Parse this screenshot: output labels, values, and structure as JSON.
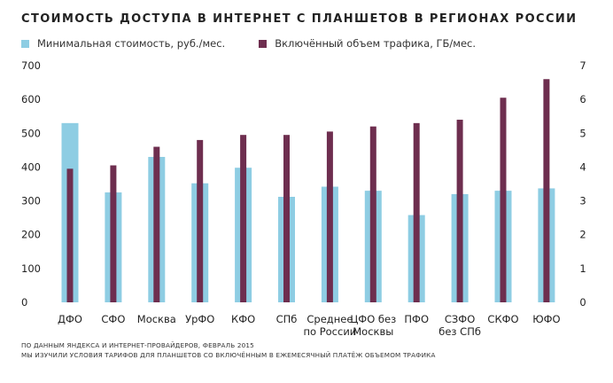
{
  "header": {
    "title": "СТОИМОСТЬ ДОСТУПА В ИНТЕРНЕТ С ПЛАНШЕТОВ В РЕГИОНАХ РОССИИ"
  },
  "legend": {
    "items": [
      {
        "label": "Минимальная стоимость, руб./мес.",
        "color": "#8ecde3"
      },
      {
        "label": "Включённый объем трафика, ГБ/мес.",
        "color": "#6e2e4f"
      }
    ]
  },
  "footer": {
    "source_line1": "ПО ДАННЫМ ЯНДЕКСА И ИНТЕРНЕТ-ПРОВАЙДЕРОВ, ФЕВРАЛЬ 2015",
    "source_line2": "МЫ ИЗУЧИЛИ УСЛОВИЯ ТАРИФОВ ДЛЯ ПЛАНШЕТОВ СО ВКЛЮЧЁННЫМ В ЕЖЕМЕСЯЧНЫЙ ПЛАТЁЖ ОБЪЕМОМ ТРАФИКА"
  },
  "chart_data": {
    "type": "bar",
    "title": "СТОИМОСТЬ ДОСТУПА В ИНТЕРНЕТ С ПЛАНШЕТОВ В РЕГИОНАХ РОССИИ",
    "categories": [
      [
        "ДФО"
      ],
      [
        "СФО"
      ],
      [
        "Москва"
      ],
      [
        "УрФО"
      ],
      [
        "КФО"
      ],
      [
        "СПб"
      ],
      [
        "Среднее",
        "по России"
      ],
      [
        "ЦФО без",
        "Москвы"
      ],
      [
        "ПФО"
      ],
      [
        "СЗФО",
        "без СПб"
      ],
      [
        "СКФО"
      ],
      [
        "ЮФО"
      ]
    ],
    "series": [
      {
        "name": "Минимальная стоимость, руб./мес.",
        "axis": "left",
        "color": "#8ecde3",
        "values": [
          530,
          325,
          430,
          352,
          398,
          312,
          342,
          330,
          258,
          320,
          330,
          337
        ]
      },
      {
        "name": "Включённый объем трафика, ГБ/мес.",
        "axis": "right",
        "color": "#6e2e4f",
        "values": [
          3.95,
          4.05,
          4.6,
          4.8,
          4.95,
          4.95,
          5.05,
          5.2,
          5.3,
          5.4,
          6.05,
          6.6
        ]
      }
    ],
    "y_left": {
      "min": 0,
      "max": 700,
      "ticks": [
        0,
        100,
        200,
        300,
        400,
        500,
        600,
        700
      ]
    },
    "y_right": {
      "min": 0,
      "max": 7,
      "ticks": [
        0,
        1,
        2,
        3,
        4,
        5,
        6,
        7
      ]
    },
    "grid": false,
    "legend_position": "top-left"
  }
}
